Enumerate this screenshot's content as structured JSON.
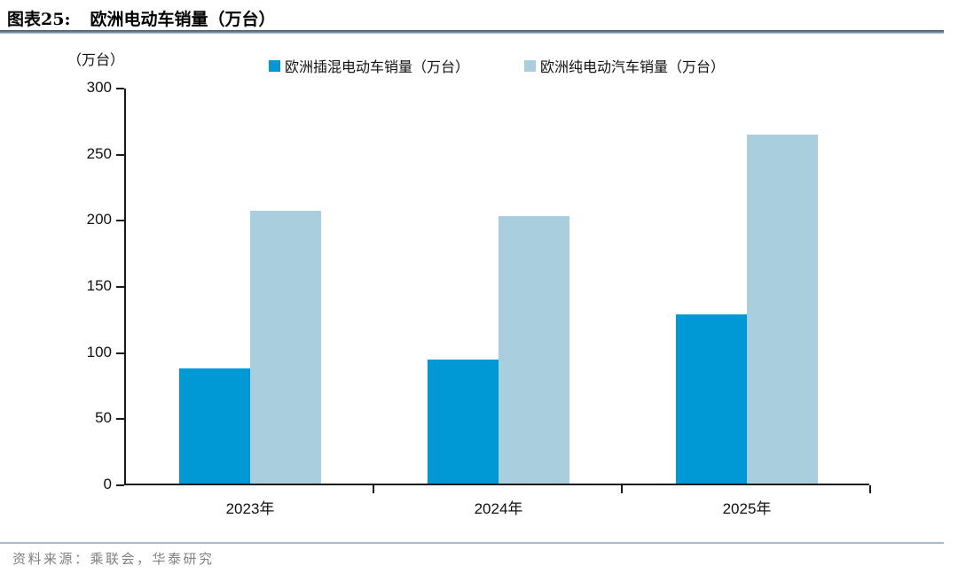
{
  "header": {
    "figure_label": "图表25:",
    "title": "欧洲电动车销量（万台）"
  },
  "chart_data": {
    "type": "bar",
    "title": "欧洲电动车销量（万台）",
    "y_unit_label": "（万台）",
    "categories": [
      "2023年",
      "2024年",
      "2025年"
    ],
    "series": [
      {
        "name": "欧洲插混电动车销量（万台）",
        "color": "#0099d6",
        "values": [
          87,
          94,
          128
        ]
      },
      {
        "name": "欧洲纯电动汽车销量（万台）",
        "color": "#a9cede",
        "values": [
          206,
          202,
          264
        ]
      }
    ],
    "ylim": [
      0,
      300
    ],
    "y_tick_step": 50,
    "y_ticks": [
      0,
      50,
      100,
      150,
      200,
      250,
      300
    ],
    "grid": false,
    "legend_position": "top-center"
  },
  "footer": {
    "source": "资料来源：乘联会，华泰研究"
  }
}
